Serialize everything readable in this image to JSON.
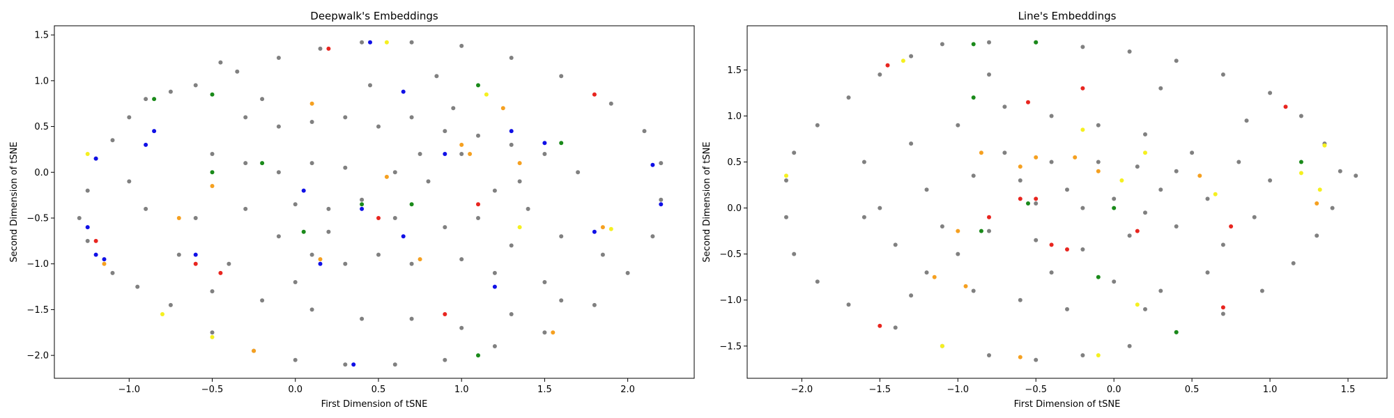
{
  "chart_data": [
    {
      "type": "scatter",
      "title": "Deepwalk's Embeddings",
      "xlabel": "First Dimension of tSNE",
      "ylabel": "Second Dimension of tSNE",
      "xlim": [
        -1.45,
        2.4
      ],
      "ylim": [
        -2.25,
        1.6
      ],
      "xticks": [
        -1.0,
        -0.5,
        0.0,
        0.5,
        1.0,
        1.5,
        2.0
      ],
      "xtick_labels": [
        "−1.0",
        "−0.5",
        "0.0",
        "0.5",
        "1.0",
        "1.5",
        "2.0"
      ],
      "yticks": [
        -2.0,
        -1.5,
        -1.0,
        -0.5,
        0.0,
        0.5,
        1.0,
        1.5
      ],
      "ytick_labels": [
        "−2.0",
        "−1.5",
        "−1.0",
        "−0.5",
        "0.0",
        "0.5",
        "1.0",
        "1.5"
      ],
      "grid": false,
      "legend": "none",
      "colors": {
        "grey": "#808080",
        "red": "#e8251f",
        "blue": "#1010e6",
        "green": "#1a8a1a",
        "orange": "#f5a020",
        "yellow": "#f5f020"
      },
      "points": {
        "grey": [
          [
            -0.9,
            0.8
          ],
          [
            -1.0,
            0.6
          ],
          [
            -1.1,
            0.35
          ],
          [
            -1.2,
            0.15
          ],
          [
            -1.25,
            -0.2
          ],
          [
            -1.3,
            -0.5
          ],
          [
            -1.25,
            -0.75
          ],
          [
            -1.1,
            -1.1
          ],
          [
            -0.95,
            -1.25
          ],
          [
            -0.75,
            -1.45
          ],
          [
            -0.5,
            -1.75
          ],
          [
            -0.25,
            -1.95
          ],
          [
            0.0,
            -2.05
          ],
          [
            0.3,
            -2.1
          ],
          [
            0.6,
            -2.1
          ],
          [
            0.9,
            -2.05
          ],
          [
            1.2,
            -1.9
          ],
          [
            1.5,
            -1.75
          ],
          [
            1.8,
            -1.45
          ],
          [
            2.0,
            -1.1
          ],
          [
            2.15,
            -0.7
          ],
          [
            2.2,
            -0.3
          ],
          [
            2.2,
            0.1
          ],
          [
            2.1,
            0.45
          ],
          [
            1.9,
            0.75
          ],
          [
            1.6,
            1.05
          ],
          [
            1.3,
            1.25
          ],
          [
            1.0,
            1.38
          ],
          [
            0.7,
            1.42
          ],
          [
            0.4,
            1.42
          ],
          [
            0.15,
            1.35
          ],
          [
            -0.1,
            1.25
          ],
          [
            -0.35,
            1.1
          ],
          [
            -0.6,
            0.95
          ],
          [
            -0.75,
            0.88
          ],
          [
            -0.45,
            1.2
          ],
          [
            -0.3,
            0.6
          ],
          [
            -0.1,
            0.5
          ],
          [
            0.1,
            0.55
          ],
          [
            0.3,
            0.6
          ],
          [
            0.5,
            0.5
          ],
          [
            0.7,
            0.6
          ],
          [
            0.9,
            0.45
          ],
          [
            1.1,
            0.4
          ],
          [
            1.3,
            0.3
          ],
          [
            1.5,
            0.2
          ],
          [
            1.7,
            0.0
          ],
          [
            -0.5,
            0.2
          ],
          [
            -0.3,
            0.1
          ],
          [
            -0.1,
            0.0
          ],
          [
            0.1,
            0.1
          ],
          [
            0.3,
            0.05
          ],
          [
            0.6,
            0.0
          ],
          [
            0.8,
            -0.1
          ],
          [
            1.0,
            0.2
          ],
          [
            1.2,
            -0.2
          ],
          [
            1.4,
            -0.4
          ],
          [
            1.6,
            -0.7
          ],
          [
            -0.6,
            -0.5
          ],
          [
            -0.3,
            -0.4
          ],
          [
            0.0,
            -0.35
          ],
          [
            0.2,
            -0.4
          ],
          [
            0.4,
            -0.3
          ],
          [
            0.6,
            -0.5
          ],
          [
            0.9,
            -0.6
          ],
          [
            1.1,
            -0.5
          ],
          [
            1.3,
            -0.8
          ],
          [
            -0.7,
            -0.9
          ],
          [
            -0.4,
            -1.0
          ],
          [
            -0.1,
            -0.7
          ],
          [
            0.1,
            -0.9
          ],
          [
            0.3,
            -1.0
          ],
          [
            0.5,
            -0.9
          ],
          [
            0.7,
            -1.0
          ],
          [
            1.0,
            -0.95
          ],
          [
            1.2,
            -1.1
          ],
          [
            1.5,
            -1.2
          ],
          [
            -0.5,
            -1.3
          ],
          [
            -0.2,
            -1.4
          ],
          [
            0.1,
            -1.5
          ],
          [
            0.4,
            -1.6
          ],
          [
            0.7,
            -1.6
          ],
          [
            1.0,
            -1.7
          ],
          [
            1.3,
            -1.55
          ],
          [
            1.6,
            -1.4
          ],
          [
            -0.9,
            -0.4
          ],
          [
            -1.0,
            -0.1
          ],
          [
            0.0,
            -1.2
          ],
          [
            0.2,
            -0.65
          ],
          [
            0.75,
            0.2
          ],
          [
            0.95,
            0.7
          ],
          [
            1.35,
            -0.1
          ],
          [
            1.85,
            -0.9
          ],
          [
            -0.2,
            0.8
          ],
          [
            0.45,
            0.95
          ],
          [
            0.85,
            1.05
          ]
        ],
        "red": [
          [
            -1.2,
            -0.75
          ],
          [
            -0.6,
            -1.0
          ],
          [
            -0.45,
            -1.1
          ],
          [
            0.2,
            1.35
          ],
          [
            0.5,
            -0.5
          ],
          [
            1.1,
            -0.35
          ],
          [
            1.8,
            0.85
          ],
          [
            0.9,
            -1.55
          ]
        ],
        "blue": [
          [
            -1.25,
            -0.6
          ],
          [
            -1.2,
            -0.9
          ],
          [
            -1.15,
            -0.95
          ],
          [
            -1.2,
            0.15
          ],
          [
            -0.9,
            0.3
          ],
          [
            -0.85,
            0.45
          ],
          [
            -0.6,
            -0.9
          ],
          [
            0.05,
            -0.2
          ],
          [
            0.15,
            -1.0
          ],
          [
            0.4,
            -0.4
          ],
          [
            0.65,
            -0.7
          ],
          [
            0.9,
            0.2
          ],
          [
            1.2,
            -1.25
          ],
          [
            1.3,
            0.45
          ],
          [
            1.5,
            0.32
          ],
          [
            1.8,
            -0.65
          ],
          [
            2.2,
            -0.35
          ],
          [
            2.15,
            0.08
          ],
          [
            0.35,
            -2.1
          ],
          [
            0.45,
            1.42
          ],
          [
            0.65,
            0.88
          ]
        ],
        "green": [
          [
            -0.85,
            0.8
          ],
          [
            -0.5,
            0.85
          ],
          [
            -0.5,
            0.0
          ],
          [
            -0.2,
            0.1
          ],
          [
            0.05,
            -0.65
          ],
          [
            0.4,
            -0.35
          ],
          [
            0.7,
            -0.35
          ],
          [
            1.1,
            0.95
          ],
          [
            1.1,
            -2.0
          ],
          [
            1.6,
            0.32
          ]
        ],
        "orange": [
          [
            -1.15,
            -1.0
          ],
          [
            -0.7,
            -0.5
          ],
          [
            -0.5,
            -0.15
          ],
          [
            -0.25,
            -1.95
          ],
          [
            0.1,
            0.75
          ],
          [
            0.15,
            -0.95
          ],
          [
            0.55,
            -0.05
          ],
          [
            0.75,
            -0.95
          ],
          [
            1.0,
            0.3
          ],
          [
            1.05,
            0.2
          ],
          [
            1.25,
            0.7
          ],
          [
            1.35,
            0.1
          ],
          [
            1.55,
            -1.75
          ],
          [
            1.85,
            -0.6
          ]
        ],
        "yellow": [
          [
            -1.25,
            0.2
          ],
          [
            -0.8,
            -1.55
          ],
          [
            -0.5,
            -1.8
          ],
          [
            0.55,
            1.42
          ],
          [
            1.15,
            0.85
          ],
          [
            1.35,
            -0.6
          ],
          [
            1.9,
            -0.62
          ]
        ]
      }
    },
    {
      "type": "scatter",
      "title": "Line's Embeddings",
      "xlabel": "First Dimension of tSNE",
      "ylabel": "Second Dimension of tSNE",
      "xlim": [
        -2.35,
        1.75
      ],
      "ylim": [
        -1.85,
        1.98
      ],
      "xticks": [
        -2.0,
        -1.5,
        -1.0,
        -0.5,
        0.0,
        0.5,
        1.0,
        1.5
      ],
      "xtick_labels": [
        "−2.0",
        "−1.5",
        "−1.0",
        "−0.5",
        "0.0",
        "0.5",
        "1.0",
        "1.5"
      ],
      "yticks": [
        -1.5,
        -1.0,
        -0.5,
        0.0,
        0.5,
        1.0,
        1.5
      ],
      "ytick_labels": [
        "−1.5",
        "−1.0",
        "−0.5",
        "0.0",
        "0.5",
        "1.0",
        "1.5"
      ],
      "grid": false,
      "legend": "none",
      "colors": {
        "grey": "#808080",
        "red": "#e8251f",
        "blue": "#1010e6",
        "green": "#1a8a1a",
        "orange": "#f5a020",
        "yellow": "#f5f020"
      },
      "points": {
        "grey": [
          [
            -2.1,
            0.3
          ],
          [
            -2.05,
            0.6
          ],
          [
            -1.9,
            0.9
          ],
          [
            -1.7,
            1.2
          ],
          [
            -1.5,
            1.45
          ],
          [
            -1.3,
            1.65
          ],
          [
            -1.1,
            1.78
          ],
          [
            -0.8,
            1.8
          ],
          [
            -0.5,
            1.8
          ],
          [
            -0.2,
            1.75
          ],
          [
            0.1,
            1.7
          ],
          [
            0.4,
            1.6
          ],
          [
            0.7,
            1.45
          ],
          [
            1.0,
            1.25
          ],
          [
            1.2,
            1.0
          ],
          [
            1.35,
            0.7
          ],
          [
            1.45,
            0.4
          ],
          [
            1.55,
            0.35
          ],
          [
            1.4,
            0.0
          ],
          [
            1.3,
            -0.3
          ],
          [
            1.15,
            -0.6
          ],
          [
            0.95,
            -0.9
          ],
          [
            0.7,
            -1.15
          ],
          [
            0.4,
            -1.35
          ],
          [
            0.1,
            -1.5
          ],
          [
            -0.2,
            -1.6
          ],
          [
            -0.5,
            -1.65
          ],
          [
            -0.8,
            -1.6
          ],
          [
            -1.1,
            -1.5
          ],
          [
            -1.4,
            -1.3
          ],
          [
            -1.7,
            -1.05
          ],
          [
            -1.9,
            -0.8
          ],
          [
            -2.05,
            -0.5
          ],
          [
            -2.1,
            -0.1
          ],
          [
            -1.6,
            0.5
          ],
          [
            -1.3,
            0.7
          ],
          [
            -1.0,
            0.9
          ],
          [
            -0.7,
            1.1
          ],
          [
            -0.4,
            1.0
          ],
          [
            -0.1,
            0.9
          ],
          [
            0.2,
            0.8
          ],
          [
            0.5,
            0.6
          ],
          [
            0.8,
            0.5
          ],
          [
            1.0,
            0.3
          ],
          [
            -1.5,
            0.0
          ],
          [
            -1.2,
            0.2
          ],
          [
            -0.9,
            0.35
          ],
          [
            -0.6,
            0.3
          ],
          [
            -0.3,
            0.2
          ],
          [
            0.0,
            0.1
          ],
          [
            0.3,
            0.2
          ],
          [
            0.6,
            0.1
          ],
          [
            0.9,
            -0.1
          ],
          [
            -1.4,
            -0.4
          ],
          [
            -1.1,
            -0.2
          ],
          [
            -0.8,
            -0.25
          ],
          [
            -0.5,
            -0.35
          ],
          [
            -0.2,
            -0.45
          ],
          [
            0.1,
            -0.3
          ],
          [
            0.4,
            -0.2
          ],
          [
            0.7,
            -0.4
          ],
          [
            -1.2,
            -0.7
          ],
          [
            -0.9,
            -0.9
          ],
          [
            -0.6,
            -1.0
          ],
          [
            -0.3,
            -1.1
          ],
          [
            0.0,
            -0.8
          ],
          [
            0.3,
            -0.9
          ],
          [
            0.6,
            -0.7
          ],
          [
            -0.7,
            0.6
          ],
          [
            -0.4,
            0.5
          ],
          [
            -0.1,
            0.5
          ],
          [
            0.15,
            0.45
          ],
          [
            0.4,
            0.4
          ],
          [
            -0.5,
            0.05
          ],
          [
            -0.2,
            0.0
          ],
          [
            0.2,
            -0.05
          ],
          [
            -1.6,
            -0.1
          ],
          [
            -1.0,
            -0.5
          ],
          [
            -0.4,
            -0.7
          ],
          [
            0.2,
            -1.1
          ],
          [
            -0.8,
            1.45
          ],
          [
            0.3,
            1.3
          ],
          [
            0.85,
            0.95
          ],
          [
            -1.3,
            -0.95
          ]
        ],
        "red": [
          [
            -1.45,
            1.55
          ],
          [
            -0.55,
            1.15
          ],
          [
            -0.2,
            1.3
          ],
          [
            1.1,
            1.1
          ],
          [
            -0.8,
            -0.1
          ],
          [
            -0.6,
            0.1
          ],
          [
            -0.5,
            0.1
          ],
          [
            -0.4,
            -0.4
          ],
          [
            -0.3,
            -0.45
          ],
          [
            0.15,
            -0.25
          ],
          [
            0.7,
            -1.08
          ],
          [
            0.75,
            -0.2
          ],
          [
            -1.5,
            -1.28
          ]
        ],
        "blue": [],
        "green": [
          [
            -0.9,
            1.78
          ],
          [
            -0.5,
            1.8
          ],
          [
            -0.9,
            1.2
          ],
          [
            -0.1,
            -0.75
          ],
          [
            0.0,
            0.0
          ],
          [
            0.4,
            -1.35
          ],
          [
            1.2,
            0.5
          ],
          [
            -0.85,
            -0.25
          ],
          [
            -0.55,
            0.05
          ]
        ],
        "orange": [
          [
            -0.85,
            0.6
          ],
          [
            -0.6,
            0.45
          ],
          [
            -0.5,
            0.55
          ],
          [
            -0.25,
            0.55
          ],
          [
            -0.1,
            0.4
          ],
          [
            -1.0,
            -0.25
          ],
          [
            -0.95,
            -0.85
          ],
          [
            -1.15,
            -0.75
          ],
          [
            -0.6,
            -1.62
          ],
          [
            1.3,
            0.05
          ],
          [
            0.55,
            0.35
          ]
        ],
        "yellow": [
          [
            -2.1,
            0.35
          ],
          [
            -1.35,
            1.6
          ],
          [
            -0.2,
            0.85
          ],
          [
            0.05,
            0.3
          ],
          [
            0.2,
            0.6
          ],
          [
            -1.1,
            -1.5
          ],
          [
            -0.1,
            -1.6
          ],
          [
            0.15,
            -1.05
          ],
          [
            0.65,
            0.15
          ],
          [
            1.2,
            0.38
          ],
          [
            1.35,
            0.68
          ],
          [
            1.32,
            0.2
          ]
        ]
      }
    }
  ]
}
